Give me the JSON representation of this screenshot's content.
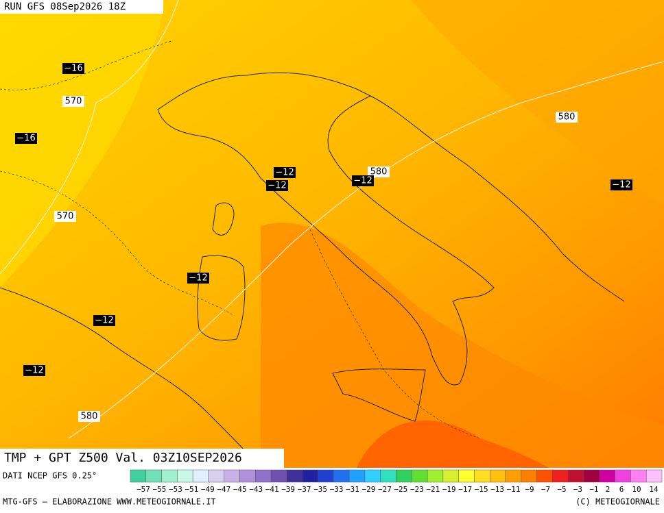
{
  "header": {
    "run": "RUN GFS 08Sep2026 18Z"
  },
  "map": {
    "contour_labels": [
      "−16",
      "570",
      "−16",
      "−12",
      "−12",
      "580",
      "−12",
      "580",
      "−12",
      "570",
      "−12",
      "−12",
      "−12",
      "580"
    ]
  },
  "footer": {
    "title": "TMP + GPT Z500 Val. 03Z10SEP2026",
    "source": "DATI NCEP GFS 0.25°",
    "credit": "MTG-GFS — ELABORAZIONE WWW.METEOGIORNALE.IT",
    "copyright": "(C) METEOGIORNALE"
  },
  "legend": {
    "labels": [
      "−57",
      "−55",
      "−53",
      "−51",
      "−49",
      "−47",
      "−45",
      "−43",
      "−41",
      "−39",
      "−37",
      "−35",
      "−33",
      "−31",
      "−29",
      "−27",
      "−25",
      "−23",
      "−21",
      "−19",
      "−17",
      "−15",
      "−13",
      "−11",
      "−9",
      "−7",
      "−5",
      "−3",
      "−1",
      "2",
      "6",
      "10",
      "14"
    ]
  }
}
